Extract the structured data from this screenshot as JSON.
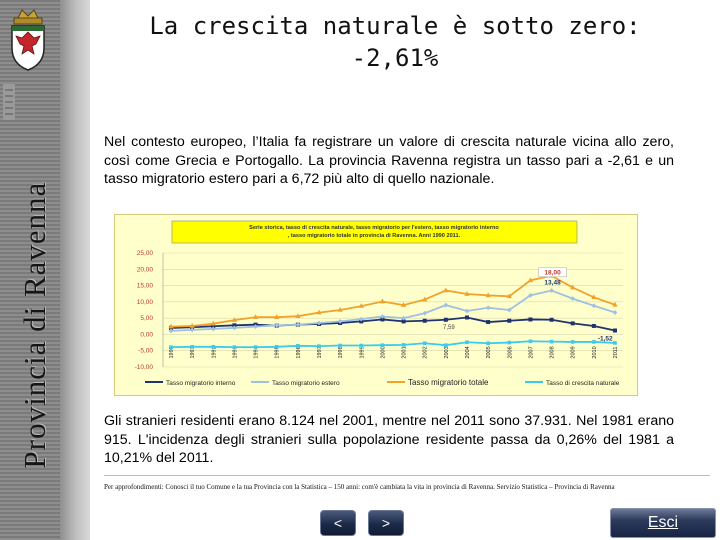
{
  "sidebar": {
    "title": "Provincia di Ravenna",
    "crest_icon": "coat-of-arms-icon"
  },
  "header": {
    "title_line1": "La crescita naturale è sotto zero:",
    "title_line2": "-2,61%"
  },
  "paragraph1": "Nel contesto europeo, l’Italia fa registrare un valore di crescita naturale vicina allo zero, così come Grecia e Portogallo. La provincia Ravenna registra un tasso pari a -2,61 e un tasso migratorio estero pari a 6,72 più alto di quello nazionale.",
  "paragraph2": "Gli stranieri residenti erano 8.124 nel 2001, mentre nel 2011 sono 37.931. Nel 1981 erano 915. L'incidenza degli stranieri sulla popolazione residente passa da  0,26% del 1981  a 10,21% del 2011.",
  "footnote": "Per approfondimenti: Conosci il tuo Comune e la tua Provincia con la Statistica – 150 anni: com'è cambiata la vita in provincia di Ravenna.  Servizio Statistica – Provincia di Ravenna",
  "nav": {
    "prev_label": "<",
    "next_label": ">",
    "exit_label": "Esci"
  },
  "colors": {
    "orange": "#f0a22a",
    "navy": "#1f3370",
    "lightblue": "#9fc0e2",
    "cyan": "#3ccaf0",
    "title_box": "#ffff00"
  },
  "chart_data": {
    "type": "line",
    "title": "Serie storica, tasso di crescita naturale, tasso migratorio per l'estero, tasso migratorio interno,  tasso migratorio totale in provincia di Ravenna. Anni 1990 2011.",
    "x": [
      "1990",
      "1991",
      "1992",
      "1993",
      "1994",
      "1995",
      "1996",
      "1997",
      "1998",
      "1999",
      "2000",
      "2001",
      "2002",
      "2003",
      "2004",
      "2005",
      "2006",
      "2007",
      "2008",
      "2009",
      "2010",
      "2011"
    ],
    "ylim": [
      -10,
      25
    ],
    "yticks": [
      "25,00",
      "20,00",
      "15,00",
      "10,00",
      "5,00",
      "0,00",
      "-5,00",
      "-10,00"
    ],
    "series": [
      {
        "name": "Tasso migratorio interno",
        "color": "#1f3370",
        "values": [
          2.0,
          2.2,
          2.5,
          2.8,
          3.0,
          2.7,
          3.0,
          3.2,
          3.5,
          4.0,
          4.6,
          4.0,
          4.2,
          4.5,
          5.2,
          3.8,
          4.2,
          4.6,
          4.5,
          3.4,
          2.6,
          1.2
        ]
      },
      {
        "name": "Tasso migratorio estero",
        "color": "#9fc0e2",
        "values": [
          1.1,
          1.4,
          1.7,
          2.0,
          2.4,
          2.8,
          3.0,
          3.5,
          4.0,
          4.7,
          5.5,
          5.0,
          6.5,
          9.0,
          7.2,
          8.2,
          7.5,
          12.0,
          13.48,
          11.0,
          8.8,
          6.72
        ]
      },
      {
        "name": "Tasso migratorio totale",
        "color": "#f0a22a",
        "values": [
          2.4,
          2.6,
          3.3,
          4.4,
          5.3,
          5.3,
          5.6,
          6.7,
          7.5,
          8.7,
          10.1,
          9.0,
          10.7,
          13.5,
          12.4,
          12.0,
          11.7,
          16.6,
          18.0,
          14.4,
          11.4,
          9.1
        ]
      },
      {
        "name": "Tasso di crescita naturale",
        "color": "#3ccaf0",
        "values": [
          -3.9,
          -3.8,
          -3.8,
          -3.9,
          -3.9,
          -3.8,
          -3.5,
          -3.6,
          -3.4,
          -3.4,
          -3.3,
          -3.2,
          -2.7,
          -3.3,
          -2.4,
          -2.7,
          -2.5,
          -2.1,
          -2.2,
          -2.3,
          -2.3,
          -2.61
        ]
      }
    ],
    "annotations": [
      "18,00",
      "13,48",
      "7,59",
      "-1,52"
    ],
    "legend_position": "bottom"
  }
}
